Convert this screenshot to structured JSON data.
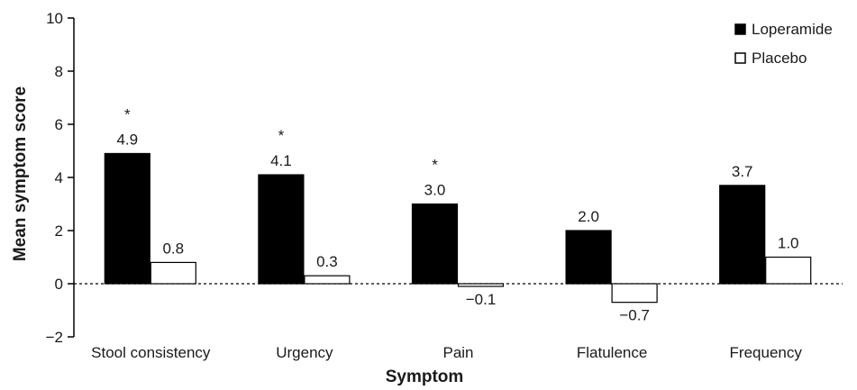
{
  "chart_data": {
    "type": "bar",
    "title": "",
    "xlabel": "Symptom",
    "ylabel": "Mean symptom score",
    "ylim": [
      -2,
      10
    ],
    "yticks": [
      -2,
      0,
      2,
      4,
      6,
      8,
      10
    ],
    "ytick_labels": [
      "−2",
      "0",
      "2",
      "4",
      "6",
      "8",
      "10"
    ],
    "categories": [
      "Stool consistency",
      "Urgency",
      "Pain",
      "Flatulence",
      "Frequency"
    ],
    "series": [
      {
        "name": "Loperamide",
        "color": "#000000",
        "values": [
          4.9,
          4.1,
          3.0,
          2.0,
          3.7
        ],
        "labels": [
          "4.9",
          "4.1",
          "3.0",
          "2.0",
          "3.7"
        ],
        "significance": [
          "*",
          "*",
          "*",
          "",
          ""
        ]
      },
      {
        "name": "Placebo",
        "color": "#ffffff",
        "values": [
          0.8,
          0.3,
          -0.1,
          -0.7,
          1.0
        ],
        "labels": [
          "0.8",
          "0.3",
          "−0.1",
          "−0.7",
          "1.0"
        ]
      }
    ],
    "zero_line": "dashed",
    "grid": false,
    "legend_position": "top-right"
  }
}
